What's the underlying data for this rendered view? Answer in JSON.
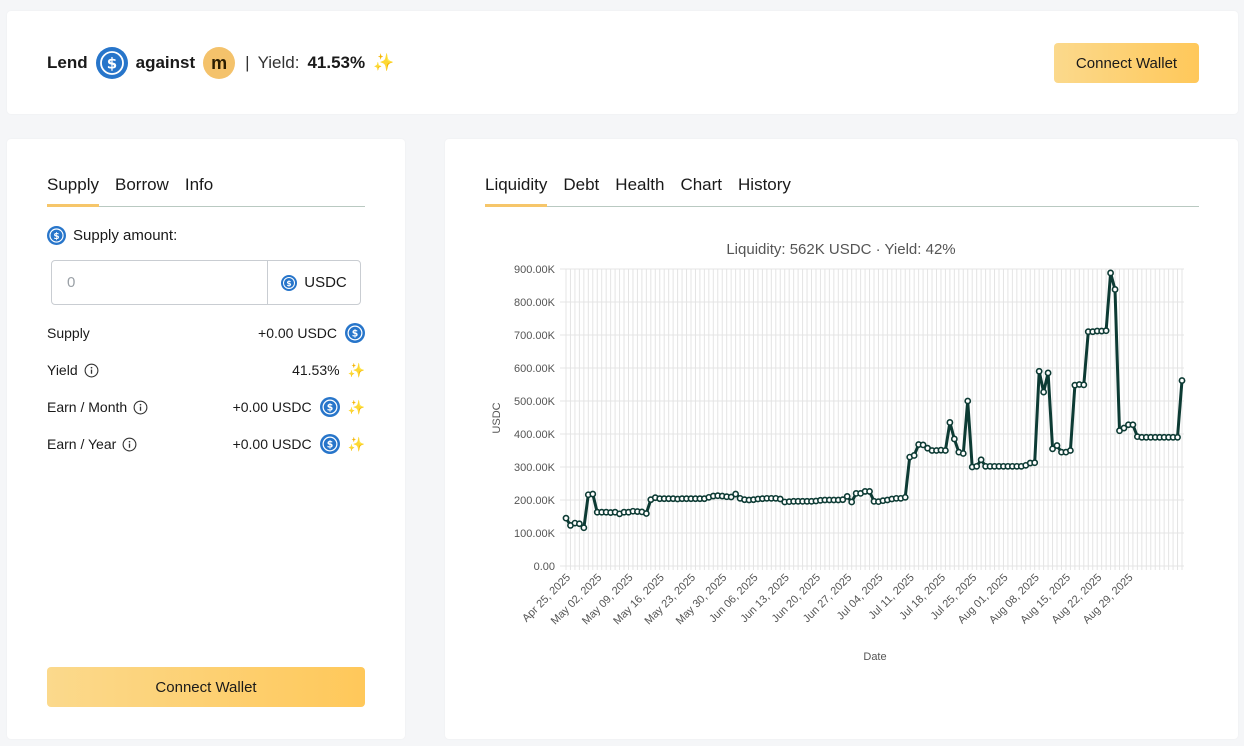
{
  "header": {
    "lend_label": "Lend",
    "against_label": "against",
    "m_coin_letter": "m",
    "separator": "|",
    "yield_label": "Yield:",
    "yield_value": "41.53%",
    "sparkle": "✨",
    "connect_label": "Connect Wallet"
  },
  "left": {
    "tabs": [
      "Supply",
      "Borrow",
      "Info"
    ],
    "supply_amount_label": "Supply amount:",
    "amount_placeholder": "0",
    "amount_unit": "USDC",
    "stats": [
      {
        "label": "Supply",
        "value": "+0.00 USDC"
      },
      {
        "label": "Yield",
        "value": "41.53%"
      },
      {
        "label": "Earn / Month",
        "value": "+0.00 USDC"
      },
      {
        "label": "Earn / Year",
        "value": "+0.00 USDC"
      }
    ],
    "connect_label": "Connect Wallet"
  },
  "right": {
    "tabs": [
      "Liquidity",
      "Debt",
      "Health",
      "Chart",
      "History"
    ]
  },
  "colors": {
    "accent_gold": "#f6c66a",
    "usdc_blue": "#2775ca",
    "line": "#0d3b34"
  },
  "chart_data": {
    "type": "line",
    "title": "Liquidity: 562K USDC · Yield: 42%",
    "xlabel": "Date",
    "ylabel": "USDC",
    "ylim": [
      0,
      900000
    ],
    "yticks": [
      "0.00",
      "100.00K",
      "200.00K",
      "300.00K",
      "400.00K",
      "500.00K",
      "600.00K",
      "700.00K",
      "800.00K",
      "900.00K"
    ],
    "xticks": [
      "Apr 25, 2025",
      "May 02, 2025",
      "May 09, 2025",
      "May 16, 2025",
      "May 23, 2025",
      "May 30, 2025",
      "Jun 06, 2025",
      "Jun 13, 2025",
      "Jun 20, 2025",
      "Jun 27, 2025",
      "Jul 04, 2025",
      "Jul 11, 2025",
      "Jul 18, 2025",
      "Jul 25, 2025",
      "Aug 01, 2025",
      "Aug 08, 2025",
      "Aug 15, 2025",
      "Aug 22, 2025",
      "Aug 29, 2025"
    ],
    "grid": true,
    "series": [
      {
        "values": [
          145000,
          123000,
          130000,
          128000,
          116000,
          216000,
          218000,
          163000,
          163000,
          163000,
          162000,
          163000,
          158000,
          163000,
          163000,
          166000,
          165000,
          164000,
          159000,
          201000,
          207000,
          204000,
          204000,
          204000,
          204000,
          203000,
          204000,
          204000,
          204000,
          204000,
          204000,
          204000,
          208000,
          212000,
          213000,
          212000,
          210000,
          209000,
          218000,
          205000,
          201000,
          200000,
          201000,
          203000,
          204000,
          205000,
          205000,
          205000,
          203000,
          194000,
          195000,
          196000,
          196000,
          196000,
          196000,
          196000,
          197000,
          199000,
          200000,
          200000,
          200000,
          200000,
          201000,
          211000,
          194000,
          220000,
          220000,
          226000,
          226000,
          196000,
          195000,
          198000,
          200000,
          203000,
          205000,
          205000,
          208000,
          330000,
          335000,
          368000,
          367000,
          357000,
          350000,
          350000,
          351000,
          350000,
          435000,
          385000,
          345000,
          341000,
          500000,
          300000,
          302000,
          322000,
          302000,
          302000,
          302000,
          302000,
          302000,
          302000,
          302000,
          302000,
          302000,
          305000,
          312000,
          313000,
          590000,
          527000,
          585000,
          355000,
          365000,
          345000,
          345000,
          350000,
          548000,
          550000,
          549000,
          710000,
          710000,
          712000,
          712000,
          713000,
          888000,
          838000,
          410000,
          418000,
          428000,
          428000,
          392000,
          390000,
          390000,
          390000,
          390000,
          390000,
          390000,
          390000,
          390000,
          390000,
          562000
        ]
      }
    ]
  }
}
